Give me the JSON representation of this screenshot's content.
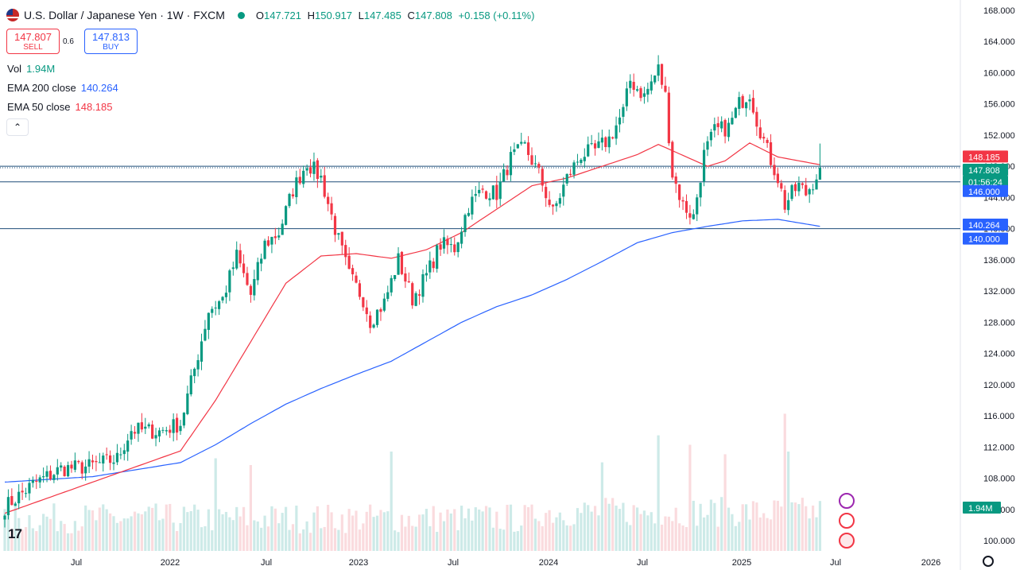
{
  "header": {
    "symbol": "U.S. Dollar / Japanese Yen · 1W · FXCM",
    "o_label": "O",
    "o_value": "147.721",
    "h_label": "H",
    "h_value": "150.917",
    "l_label": "L",
    "l_value": "147.485",
    "c_label": "C",
    "c_value": "147.808",
    "change": "+0.158 (+0.11%)"
  },
  "trade": {
    "sell_price": "147.807",
    "sell_label": "SELL",
    "spread": "0.6",
    "buy_price": "147.813",
    "buy_label": "BUY"
  },
  "indicators": {
    "vol_label": "Vol",
    "vol_value": "1.94M",
    "ema200_label": "EMA 200 close",
    "ema200_value": "140.264",
    "ema50_label": "EMA 50 close",
    "ema50_value": "148.185"
  },
  "collapse_icon": "chevron-up-icon",
  "logo_text": "17",
  "colors": {
    "up": "#089981",
    "down": "#f23645",
    "ema50": "#f23645",
    "ema200": "#2962ff"
  },
  "chart_data": {
    "type": "candlestick",
    "timeframe": "1W",
    "y_ticks": [
      "100.000",
      "104.000",
      "108.000",
      "112.000",
      "116.000",
      "120.000",
      "124.000",
      "128.000",
      "132.000",
      "136.000",
      "140.000",
      "144.000",
      "148.000",
      "152.000",
      "156.000",
      "160.000",
      "164.000",
      "168.000"
    ],
    "x_ticks": [
      "Jul",
      "2022",
      "Jul",
      "2023",
      "Jul",
      "2024",
      "Jul",
      "2025",
      "Jul",
      "2026"
    ],
    "ylim": [
      99,
      168.5
    ],
    "close_waypoints": [
      [
        0,
        104.3
      ],
      [
        8,
        107.2
      ],
      [
        16,
        109.2
      ],
      [
        24,
        109.5
      ],
      [
        32,
        110.5
      ],
      [
        36,
        114.2
      ],
      [
        44,
        114.0
      ],
      [
        50,
        115.0
      ],
      [
        54,
        122.0
      ],
      [
        58,
        129.5
      ],
      [
        62,
        131.0
      ],
      [
        66,
        136.5
      ],
      [
        70,
        131.5
      ],
      [
        74,
        138.0
      ],
      [
        78,
        139.5
      ],
      [
        82,
        145.0
      ],
      [
        86,
        148.5
      ],
      [
        90,
        146.5
      ],
      [
        94,
        140.0
      ],
      [
        98,
        134.0
      ],
      [
        102,
        131.0
      ],
      [
        104,
        128.2
      ],
      [
        108,
        130.5
      ],
      [
        112,
        136.0
      ],
      [
        116,
        131.0
      ],
      [
        120,
        134.0
      ],
      [
        124,
        138.0
      ],
      [
        128,
        137.5
      ],
      [
        132,
        143.0
      ],
      [
        136,
        145.0
      ],
      [
        140,
        144.5
      ],
      [
        144,
        149.0
      ],
      [
        148,
        150.5
      ],
      [
        152,
        147.0
      ],
      [
        156,
        142.0
      ],
      [
        160,
        146.5
      ],
      [
        164,
        149.5
      ],
      [
        168,
        150.0
      ],
      [
        172,
        151.5
      ],
      [
        176,
        155.0
      ],
      [
        178,
        159.0
      ],
      [
        182,
        157.0
      ],
      [
        186,
        160.5
      ],
      [
        188,
        157.0
      ],
      [
        190,
        147.0
      ],
      [
        193,
        143.0
      ],
      [
        196,
        141.5
      ],
      [
        199,
        149.5
      ],
      [
        202,
        152.5
      ],
      [
        206,
        153.0
      ],
      [
        209,
        156.0
      ],
      [
        212,
        157.5
      ],
      [
        214,
        154.0
      ],
      [
        217,
        150.0
      ],
      [
        220,
        146.5
      ],
      [
        222,
        143.0
      ],
      [
        224,
        144.5
      ],
      [
        226,
        145.5
      ],
      [
        228,
        144.5
      ],
      [
        230,
        146.0
      ],
      [
        232,
        147.8
      ]
    ],
    "ema50_waypoints": [
      [
        0,
        103.5
      ],
      [
        25,
        107.5
      ],
      [
        50,
        111.5
      ],
      [
        60,
        118.0
      ],
      [
        70,
        125.5
      ],
      [
        80,
        133.0
      ],
      [
        90,
        136.5
      ],
      [
        100,
        136.8
      ],
      [
        110,
        136.2
      ],
      [
        120,
        137.3
      ],
      [
        130,
        139.5
      ],
      [
        140,
        142.5
      ],
      [
        150,
        145.5
      ],
      [
        160,
        146.5
      ],
      [
        170,
        148.0
      ],
      [
        180,
        149.5
      ],
      [
        186,
        150.8
      ],
      [
        190,
        150.0
      ],
      [
        200,
        148.0
      ],
      [
        205,
        148.7
      ],
      [
        212,
        151.0
      ],
      [
        220,
        149.2
      ],
      [
        226,
        148.7
      ],
      [
        232,
        148.2
      ]
    ],
    "ema200_waypoints": [
      [
        0,
        107.5
      ],
      [
        25,
        108.2
      ],
      [
        50,
        110.0
      ],
      [
        60,
        112.3
      ],
      [
        70,
        115.0
      ],
      [
        80,
        117.5
      ],
      [
        90,
        119.5
      ],
      [
        100,
        121.3
      ],
      [
        110,
        123.0
      ],
      [
        120,
        125.5
      ],
      [
        130,
        128.0
      ],
      [
        140,
        130.0
      ],
      [
        150,
        131.5
      ],
      [
        160,
        133.5
      ],
      [
        170,
        135.8
      ],
      [
        180,
        138.2
      ],
      [
        190,
        139.5
      ],
      [
        200,
        140.3
      ],
      [
        210,
        141.0
      ],
      [
        220,
        141.2
      ],
      [
        232,
        140.3
      ]
    ],
    "horizontal_lines": [
      146.0,
      148.0,
      140.0
    ],
    "price_labels": [
      {
        "text": "148.185",
        "kind": "ema50"
      },
      {
        "text": "148.000",
        "kind": "level"
      },
      {
        "text": "147.808",
        "kind": "last"
      },
      {
        "text": "01:56:24",
        "kind": "timer"
      },
      {
        "text": "146.000",
        "kind": "level-blue"
      },
      {
        "text": "140.264",
        "kind": "ema200"
      },
      {
        "text": "140.000",
        "kind": "level-blue"
      }
    ],
    "volume_label": "1.94M"
  }
}
